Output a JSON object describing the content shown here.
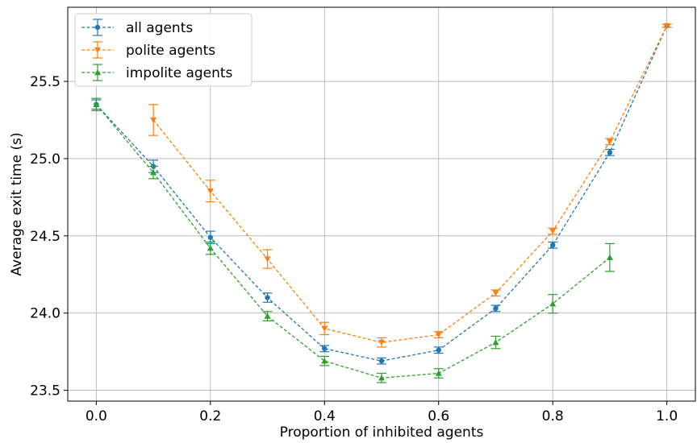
{
  "chart_data": {
    "type": "line",
    "xlabel": "Proportion of inhibited agents",
    "ylabel": "Average exit time (s)",
    "xlim": [
      -0.05,
      1.05
    ],
    "ylim": [
      23.43,
      25.98
    ],
    "xticks": [
      0.0,
      0.2,
      0.4,
      0.6,
      0.8,
      1.0
    ],
    "xtick_labels": [
      "0.0",
      "0.2",
      "0.4",
      "0.6",
      "0.8",
      "1.0"
    ],
    "yticks": [
      23.5,
      24.0,
      24.5,
      25.0,
      25.5
    ],
    "ytick_labels": [
      "23.5",
      "24.0",
      "24.5",
      "25.0",
      "25.5"
    ],
    "grid": true,
    "legend_position": "top-left",
    "series": [
      {
        "name": "all agents",
        "color": "#1f77b4",
        "marker": "circle",
        "x": [
          0.0,
          0.1,
          0.2,
          0.3,
          0.4,
          0.5,
          0.6,
          0.7,
          0.8,
          0.9,
          1.0
        ],
        "y": [
          25.35,
          24.95,
          24.49,
          24.1,
          23.77,
          23.69,
          23.76,
          24.03,
          24.44,
          25.04,
          25.86
        ],
        "err": [
          0.03,
          0.04,
          0.04,
          0.03,
          0.02,
          0.02,
          0.02,
          0.02,
          0.02,
          0.02,
          0.01
        ]
      },
      {
        "name": "polite agents",
        "color": "#ff7f0e",
        "marker": "triangle-down",
        "x": [
          0.1,
          0.2,
          0.3,
          0.4,
          0.5,
          0.6,
          0.7,
          0.8,
          0.9,
          1.0
        ],
        "y": [
          25.25,
          24.79,
          24.35,
          23.9,
          23.81,
          23.86,
          24.13,
          24.53,
          25.11,
          25.86
        ],
        "err": [
          0.1,
          0.07,
          0.06,
          0.04,
          0.03,
          0.02,
          0.02,
          0.02,
          0.02,
          0.01
        ]
      },
      {
        "name": "impolite agents",
        "color": "#2ca02c",
        "marker": "triangle-up",
        "x": [
          0.0,
          0.1,
          0.2,
          0.3,
          0.4,
          0.5,
          0.6,
          0.7,
          0.8,
          0.9
        ],
        "y": [
          25.35,
          24.91,
          24.42,
          23.98,
          23.69,
          23.58,
          23.61,
          23.81,
          24.06,
          24.36
        ],
        "err": [
          0.04,
          0.04,
          0.04,
          0.03,
          0.03,
          0.03,
          0.03,
          0.04,
          0.06,
          0.09
        ]
      }
    ]
  }
}
